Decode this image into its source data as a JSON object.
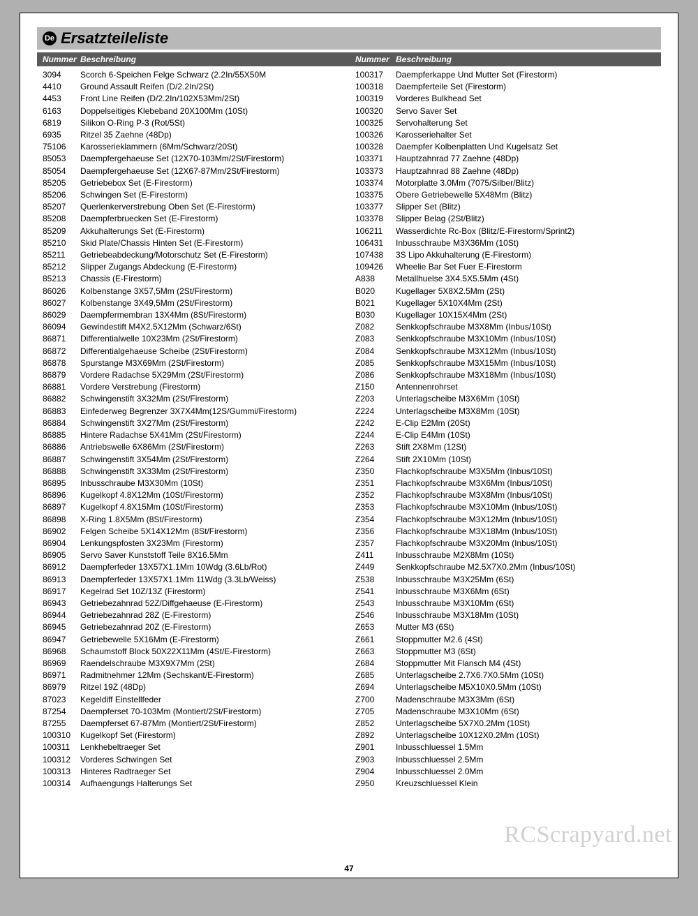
{
  "lang_badge": "De",
  "title": "Ersatzteileliste",
  "header": {
    "num": "Nummer",
    "desc": "Beschreibung"
  },
  "page_number": "47",
  "watermark": "RCScrapyard.net",
  "left": [
    {
      "n": "3094",
      "d": "Scorch 6-Speichen Felge Schwarz (2.2In/55X50M"
    },
    {
      "n": "4410",
      "d": "Ground Assault Reifen (D/2.2In/2St)"
    },
    {
      "n": "4453",
      "d": "Front Line Reifen (D/2.2In/102X53Mm/2St)"
    },
    {
      "n": "6163",
      "d": "Doppelseitiges Klebeband 20X100Mm (10St)"
    },
    {
      "n": "6819",
      "d": "Silikon O-Ring P-3 (Rot/5St)"
    },
    {
      "n": "6935",
      "d": "Ritzel 35 Zaehne (48Dp)"
    },
    {
      "n": "75106",
      "d": "Karosserieklammern (6Mm/Schwarz/20St)"
    },
    {
      "n": "85053",
      "d": "Daempfergehaeuse Set (12X70-103Mm/2St/Firestorm)"
    },
    {
      "n": "85054",
      "d": "Daempfergehaeuse Set (12X67-87Mm/2St/Firestorm)"
    },
    {
      "n": "85205",
      "d": "Getriebebox Set (E-Firestorm)"
    },
    {
      "n": "85206",
      "d": "Schwingen Set (E-Firestorm)"
    },
    {
      "n": "85207",
      "d": "Querlenkerverstrebung Oben Set (E-Firestorm)"
    },
    {
      "n": "85208",
      "d": "Daempferbruecken Set (E-Firestorm)"
    },
    {
      "n": "85209",
      "d": "Akkuhalterungs Set (E-Firestorm)"
    },
    {
      "n": "85210",
      "d": "Skid Plate/Chassis Hinten Set (E-Firestorm)"
    },
    {
      "n": "85211",
      "d": "Getriebeabdeckung/Motorschutz Set (E-Firestorm)"
    },
    {
      "n": "85212",
      "d": "Slipper Zugangs Abdeckung (E-Firestorm)"
    },
    {
      "n": "85213",
      "d": "Chassis (E-Firestorm)"
    },
    {
      "n": "86026",
      "d": "Kolbenstange 3X57,5Mm (2St/Firestorm)"
    },
    {
      "n": "86027",
      "d": "Kolbenstange 3X49,5Mm (2St/Firestorm)"
    },
    {
      "n": "86029",
      "d": "Daempfermembran 13X4Mm (8St/Firestorm)"
    },
    {
      "n": "86094",
      "d": "Gewindestift M4X2.5X12Mm (Schwarz/6St)"
    },
    {
      "n": "86871",
      "d": "Differentialwelle 10X23Mm (2St/Firestorm)"
    },
    {
      "n": "86872",
      "d": "Differentialgehaeuse Scheibe (2St/Firestorm)"
    },
    {
      "n": "86878",
      "d": "Spurstange M3X69Mm (2St/Firestorm)"
    },
    {
      "n": "86879",
      "d": "Vordere Radachse 5X29Mm (2St/Firestorm)"
    },
    {
      "n": "86881",
      "d": "Vordere Verstrebung (Firestorm)"
    },
    {
      "n": "86882",
      "d": "Schwingenstift 3X32Mm (2St/Firestorm)"
    },
    {
      "n": "86883",
      "d": "Einfederweg Begrenzer 3X7X4Mm(12S/Gummi/Firestorm)"
    },
    {
      "n": "86884",
      "d": "Schwingenstift 3X27Mm (2St/Firestorm)"
    },
    {
      "n": "86885",
      "d": "Hintere Radachse 5X41Mm (2St/Firestorm)"
    },
    {
      "n": "86886",
      "d": "Antriebswelle 6X86Mm (2St/Firestorm)"
    },
    {
      "n": "86887",
      "d": "Schwingenstift 3X54Mm (2St/Firestorm)"
    },
    {
      "n": "86888",
      "d": "Schwingenstift 3X33Mm (2St/Firestorm)"
    },
    {
      "n": "86895",
      "d": "Inbusschraube M3X30Mm (10St)"
    },
    {
      "n": "86896",
      "d": "Kugelkopf 4.8X12Mm (10St/Firestorm)"
    },
    {
      "n": "86897",
      "d": "Kugelkopf 4.8X15Mm (10St/Firestorm)"
    },
    {
      "n": "86898",
      "d": "X-Ring 1.8X5Mm (8St/Firestorm)"
    },
    {
      "n": "86902",
      "d": "Felgen Scheibe 5X14X12Mm (8St/Firestorm)"
    },
    {
      "n": "86904",
      "d": "Lenkungspfosten 3X23Mm (Firestorm)"
    },
    {
      "n": "86905",
      "d": "Servo Saver Kunststoff Teile 8X16.5Mm"
    },
    {
      "n": "86912",
      "d": "Daempferfeder 13X57X1.1Mm 10Wdg (3.6Lb/Rot)"
    },
    {
      "n": "86913",
      "d": "Daempferfeder 13X57X1.1Mm 11Wdg (3.3Lb/Weiss)"
    },
    {
      "n": "86917",
      "d": "Kegelrad Set 10Z/13Z (Firestorm)"
    },
    {
      "n": "86943",
      "d": "Getriebezahnrad 52Z/Diffgehaeuse (E-Firestorm)"
    },
    {
      "n": "86944",
      "d": "Getriebezahnrad 28Z (E-Firestorm)"
    },
    {
      "n": "86945",
      "d": "Getriebezahnrad 20Z (E-Firestorm)"
    },
    {
      "n": "86947",
      "d": "Getriebewelle 5X16Mm (E-Firestorm)"
    },
    {
      "n": "86968",
      "d": "Schaumstoff Block 50X22X11Mm (4St/E-Firestorm)"
    },
    {
      "n": "86969",
      "d": "Raendelschraube M3X9X7Mm (2St)"
    },
    {
      "n": "86971",
      "d": "Radmitnehmer 12Mm (Sechskant/E-Firestorm)"
    },
    {
      "n": "86979",
      "d": "Ritzel 19Z (48Dp)"
    },
    {
      "n": "87023",
      "d": "Kegeldiff Einstellfeder"
    },
    {
      "n": "87254",
      "d": "Daempferset 70-103Mm (Montiert/2St/Firestorm)"
    },
    {
      "n": "87255",
      "d": "Daempferset 67-87Mm (Montiert/2St/Firestorm)"
    },
    {
      "n": "100310",
      "d": "Kugelkopf Set (Firestorm)"
    },
    {
      "n": "100311",
      "d": "Lenkhebeltraeger Set"
    },
    {
      "n": "100312",
      "d": "Vorderes Schwingen Set"
    },
    {
      "n": "100313",
      "d": "Hinteres Radtraeger Set"
    },
    {
      "n": "100314",
      "d": "Aufhaengungs Halterungs Set"
    }
  ],
  "right": [
    {
      "n": "100317",
      "d": "Daempferkappe Und Mutter Set (Firestorm)"
    },
    {
      "n": "100318",
      "d": "Daempferteile Set (Firestorm)"
    },
    {
      "n": "100319",
      "d": "Vorderes Bulkhead Set"
    },
    {
      "n": "100320",
      "d": "Servo Saver Set"
    },
    {
      "n": "100325",
      "d": "Servohalterung Set"
    },
    {
      "n": "100326",
      "d": "Karosseriehalter Set"
    },
    {
      "n": "100328",
      "d": "Daempfer Kolbenplatten Und Kugelsatz Set"
    },
    {
      "n": "103371",
      "d": "Hauptzahnrad 77 Zaehne (48Dp)"
    },
    {
      "n": "103373",
      "d": "Hauptzahnrad 88 Zaehne (48Dp)"
    },
    {
      "n": "103374",
      "d": "Motorplatte 3.0Mm (7075/Silber/Blitz)"
    },
    {
      "n": "103375",
      "d": "Obere Getriebewelle 5X48Mm (Blitz)"
    },
    {
      "n": "103377",
      "d": "Slipper Set (Blitz)"
    },
    {
      "n": "103378",
      "d": "Slipper Belag (2St/Blitz)"
    },
    {
      "n": "106211",
      "d": "Wasserdichte Rc-Box (Blitz/E-Firestorm/Sprint2)"
    },
    {
      "n": "106431",
      "d": "Inbusschraube M3X36Mm (10St)"
    },
    {
      "n": "107438",
      "d": "3S Lipo Akkuhalterung (E-Firestorm)"
    },
    {
      "n": "109426",
      "d": "Wheelie Bar Set Fuer E-Firestorm"
    },
    {
      "n": "A838",
      "d": "Metallhuelse 3X4.5X5.5Mm (4St)"
    },
    {
      "n": "B020",
      "d": "Kugellager 5X8X2.5Mm (2St)"
    },
    {
      "n": "B021",
      "d": "Kugellager 5X10X4Mm (2St)"
    },
    {
      "n": "B030",
      "d": "Kugellager 10X15X4Mm (2St)"
    },
    {
      "n": "Z082",
      "d": "Senkkopfschraube M3X8Mm (Inbus/10St)"
    },
    {
      "n": "Z083",
      "d": "Senkkopfschraube M3X10Mm (Inbus/10St)"
    },
    {
      "n": "Z084",
      "d": "Senkkopfschraube M3X12Mm (Inbus/10St)"
    },
    {
      "n": "Z085",
      "d": "Senkkopfschraube M3X15Mm (Inbus/10St)"
    },
    {
      "n": "Z086",
      "d": "Senkkopfschraube M3X18Mm (Inbus/10St)"
    },
    {
      "n": "Z150",
      "d": "Antennenrohrset"
    },
    {
      "n": "Z203",
      "d": "Unterlagscheibe M3X6Mm (10St)"
    },
    {
      "n": "Z224",
      "d": "Unterlagscheibe M3X8Mm (10St)"
    },
    {
      "n": "Z242",
      "d": "E-Clip E2Mm (20St)"
    },
    {
      "n": "Z244",
      "d": "E-Clip E4Mm (10St)"
    },
    {
      "n": "Z263",
      "d": "Stift 2X8Mm (12St)"
    },
    {
      "n": "Z264",
      "d": "Stift 2X10Mm (10St)"
    },
    {
      "n": "Z350",
      "d": "Flachkopfschraube M3X5Mm (Inbus/10St)"
    },
    {
      "n": "Z351",
      "d": "Flachkopfschraube M3X6Mm (Inbus/10St)"
    },
    {
      "n": "Z352",
      "d": "Flachkopfschraube M3X8Mm (Inbus/10St)"
    },
    {
      "n": "Z353",
      "d": "Flachkopfschraube M3X10Mm (Inbus/10St)"
    },
    {
      "n": "Z354",
      "d": "Flachkopfschraube M3X12Mm (Inbus/10St)"
    },
    {
      "n": "Z356",
      "d": "Flachkopfschraube M3X18Mm (Inbus/10St)"
    },
    {
      "n": "Z357",
      "d": "Flachkopfschraube M3X20Mm (Inbus/10St)"
    },
    {
      "n": "Z411",
      "d": "Inbusschraube M2X8Mm (10St)"
    },
    {
      "n": "Z449",
      "d": "Senkkopfschraube M2.5X7X0.2Mm (Inbus/10St)"
    },
    {
      "n": "Z538",
      "d": "Inbusschraube M3X25Mm (6St)"
    },
    {
      "n": "Z541",
      "d": "Inbusschraube M3X6Mm (6St)"
    },
    {
      "n": "Z543",
      "d": "Inbusschraube M3X10Mm (6St)"
    },
    {
      "n": "Z546",
      "d": "Inbusschraube M3X18Mm (10St)"
    },
    {
      "n": "Z653",
      "d": "Mutter M3 (6St)"
    },
    {
      "n": "Z661",
      "d": "Stoppmutter M2.6 (4St)"
    },
    {
      "n": "Z663",
      "d": "Stoppmutter M3 (6St)"
    },
    {
      "n": "Z684",
      "d": "Stoppmutter Mit Flansch M4 (4St)"
    },
    {
      "n": "Z685",
      "d": "Unterlagscheibe 2.7X6.7X0.5Mm (10St)"
    },
    {
      "n": "Z694",
      "d": "Unterlagscheibe M5X10X0.5Mm (10St)"
    },
    {
      "n": "Z700",
      "d": "Madenschraube M3X3Mm (6St)"
    },
    {
      "n": "Z705",
      "d": "Madenschraube M3X10Mm (6St)"
    },
    {
      "n": "Z852",
      "d": "Unterlagscheibe 5X7X0.2Mm (10St)"
    },
    {
      "n": "Z892",
      "d": "Unterlagscheibe 10X12X0.2Mm (10St)"
    },
    {
      "n": "Z901",
      "d": "Inbusschluessel 1.5Mm"
    },
    {
      "n": "Z903",
      "d": "Inbusschluessel 2.5Mm"
    },
    {
      "n": "Z904",
      "d": "Inbusschluessel 2.0Mm"
    },
    {
      "n": "Z950",
      "d": "Kreuzschluessel Klein"
    }
  ]
}
